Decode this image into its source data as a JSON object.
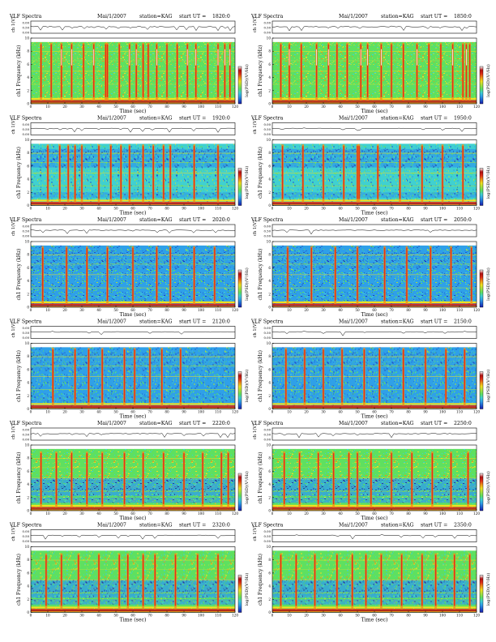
{
  "header_labels": {
    "title": "VLF Spectra",
    "date": "Mai/1/2007",
    "station": "station=KAG",
    "start_prefix": "start  UT  ="
  },
  "colors": {
    "background": "#ffffff",
    "axis": "#000000",
    "colormap": [
      "#1a1aa8",
      "#1f5fd0",
      "#2fa0e8",
      "#40d0d0",
      "#5ee060",
      "#a8e040",
      "#f0e020",
      "#f09018",
      "#e03018",
      "#b01010",
      "#ffffff"
    ]
  },
  "chart_data": [
    {
      "type": "heatmap",
      "title": "VLF Spectra",
      "start_ut": "1820:0",
      "upper_ylabel": "ch 1(V)",
      "upper_yticks": [
        "0.00",
        "0.50",
        "0.00"
      ],
      "xlabel": "Time (sec)",
      "ylabel": "ch1 Frequency (kHz)",
      "colorbar_label": "log(PSD)(V²/Hz)",
      "x_ticks": [
        0,
        10,
        20,
        30,
        40,
        50,
        60,
        70,
        80,
        90,
        100,
        110,
        120
      ],
      "y_ticks": [
        0,
        2,
        4,
        6,
        8,
        10
      ],
      "xlim": [
        0,
        120
      ],
      "ylim": [
        0,
        10
      ],
      "activity": "high",
      "bursts": [
        6,
        12,
        18,
        24,
        31,
        37,
        44,
        45,
        52,
        58,
        62,
        66,
        69,
        74,
        80,
        86,
        92,
        97,
        104,
        110,
        114,
        117
      ]
    },
    {
      "type": "heatmap",
      "title": "VLF Spectra",
      "start_ut": "1850:0",
      "upper_ylabel": "ch 1(V)",
      "upper_yticks": [
        "0.00",
        "0.50",
        "0.00"
      ],
      "xlabel": "Time (sec)",
      "ylabel": "ch1 Frequency (kHz)",
      "colorbar_label": "log(PSD)(V²/Hz)",
      "x_ticks": [
        0,
        10,
        20,
        30,
        40,
        50,
        60,
        70,
        80,
        90,
        100,
        110,
        120
      ],
      "y_ticks": [
        0,
        2,
        4,
        6,
        8,
        10
      ],
      "xlim": [
        0,
        120
      ],
      "ylim": [
        0,
        10
      ],
      "activity": "high",
      "bursts": [
        5,
        10,
        17,
        26,
        33,
        38,
        44,
        52,
        56,
        64,
        70,
        77,
        85,
        92,
        99,
        106,
        112,
        114,
        116
      ]
    },
    {
      "type": "heatmap",
      "title": "VLF Spectra",
      "start_ut": "1920:0",
      "upper_ylabel": "ch 1(V)",
      "upper_yticks": [
        "0.00",
        "0.50",
        "0.00"
      ],
      "xlabel": "Time (sec)",
      "ylabel": "ch1 Frequency (kHz)",
      "colorbar_label": "log(PSD)(V²/Hz)",
      "x_ticks": [
        0,
        10,
        20,
        30,
        40,
        50,
        60,
        70,
        80,
        90,
        100,
        110,
        120
      ],
      "y_ticks": [
        0,
        2,
        4,
        6,
        8,
        10
      ],
      "xlim": [
        0,
        120
      ],
      "ylim": [
        0,
        10
      ],
      "activity": "mid",
      "bursts": [
        10,
        17,
        22,
        26,
        30,
        40,
        47,
        53,
        58,
        66,
        72,
        78,
        82,
        96,
        110
      ]
    },
    {
      "type": "heatmap",
      "title": "VLF Spectra",
      "start_ut": "1950:0",
      "upper_ylabel": "ch 1(V)",
      "upper_yticks": [
        "0.00",
        "0.50",
        "0.00"
      ],
      "xlabel": "Time (sec)",
      "ylabel": "ch1 Frequency (kHz)",
      "colorbar_label": "log(PSD)(V²/Hz)",
      "x_ticks": [
        0,
        10,
        20,
        30,
        40,
        50,
        60,
        70,
        80,
        90,
        100,
        110,
        120
      ],
      "y_ticks": [
        0,
        2,
        4,
        6,
        8,
        10
      ],
      "xlim": [
        0,
        120
      ],
      "ylim": [
        0,
        10
      ],
      "activity": "mid",
      "bursts": [
        6,
        18,
        30,
        42,
        50,
        51,
        62,
        75,
        88,
        100,
        112
      ]
    },
    {
      "type": "heatmap",
      "title": "VLF Spectra",
      "start_ut": "2020:0",
      "upper_ylabel": "ch 1(V)",
      "upper_yticks": [
        "0.00",
        "0.50",
        "0.00"
      ],
      "xlabel": "Time (sec)",
      "ylabel": "ch1 Frequency (kHz)",
      "colorbar_label": "log(PSD)(V²/Hz)",
      "x_ticks": [
        0,
        10,
        20,
        30,
        40,
        50,
        60,
        70,
        80,
        90,
        100,
        110,
        120
      ],
      "y_ticks": [
        0,
        2,
        4,
        6,
        8,
        10
      ],
      "xlim": [
        0,
        120
      ],
      "ylim": [
        0,
        10
      ],
      "activity": "low",
      "bursts": [
        7,
        21,
        33,
        45,
        60,
        74,
        82,
        96,
        108
      ]
    },
    {
      "type": "heatmap",
      "title": "VLF Spectra",
      "start_ut": "2050:0",
      "upper_ylabel": "ch 1(V)",
      "upper_yticks": [
        "0.00",
        "0.50",
        "0.00"
      ],
      "xlabel": "Time (sec)",
      "ylabel": "ch1 Frequency (kHz)",
      "colorbar_label": "log(PSD)(V²/Hz)",
      "x_ticks": [
        0,
        10,
        20,
        30,
        40,
        50,
        60,
        70,
        80,
        90,
        100,
        110,
        120
      ],
      "y_ticks": [
        0,
        2,
        4,
        6,
        8,
        10
      ],
      "xlim": [
        0,
        120
      ],
      "ylim": [
        0,
        10
      ],
      "activity": "low",
      "bursts": [
        9,
        23,
        37,
        50,
        66,
        79,
        93,
        105,
        117
      ]
    },
    {
      "type": "heatmap",
      "title": "VLF Spectra",
      "start_ut": "2120:0",
      "upper_ylabel": "ch 1(V)",
      "upper_yticks": [
        "0.00",
        "0.50",
        "0.00"
      ],
      "xlabel": "Time (sec)",
      "ylabel": "ch1 Frequency (kHz)",
      "colorbar_label": "log(PSD)(V²/Hz)",
      "x_ticks": [
        0,
        10,
        20,
        30,
        40,
        50,
        60,
        70,
        80,
        90,
        100,
        110,
        120
      ],
      "y_ticks": [
        0,
        2,
        4,
        6,
        8,
        10
      ],
      "xlim": [
        0,
        120
      ],
      "ylim": [
        0,
        10
      ],
      "activity": "low",
      "bursts": [
        13,
        26,
        34,
        42,
        55,
        61,
        70,
        77,
        88
      ]
    },
    {
      "type": "heatmap",
      "title": "VLF Spectra",
      "start_ut": "2150:0",
      "upper_ylabel": "ch 1(V)",
      "upper_yticks": [
        "0.00",
        "0.50",
        "0.00"
      ],
      "xlabel": "Time (sec)",
      "ylabel": "ch1 Frequency (kHz)",
      "colorbar_label": "log(PSD)(V²/Hz)",
      "x_ticks": [
        0,
        10,
        20,
        30,
        40,
        50,
        60,
        70,
        80,
        90,
        100,
        110,
        120
      ],
      "y_ticks": [
        0,
        2,
        4,
        6,
        8,
        10
      ],
      "xlim": [
        0,
        120
      ],
      "ylim": [
        0,
        10
      ],
      "activity": "low",
      "bursts": [
        8,
        19,
        30,
        41,
        54,
        63,
        77,
        90,
        102,
        113
      ]
    },
    {
      "type": "heatmap",
      "title": "VLF Spectra",
      "start_ut": "2220:0",
      "upper_ylabel": "ch 1(V)",
      "upper_yticks": [
        "0.00",
        "0.50",
        "0.00"
      ],
      "xlabel": "Time (sec)",
      "ylabel": "ch1 Frequency (kHz)",
      "colorbar_label": "log(PSD)(V²/Hz)",
      "x_ticks": [
        0,
        10,
        20,
        30,
        40,
        50,
        60,
        70,
        80,
        90,
        100,
        110,
        120
      ],
      "y_ticks": [
        0,
        2,
        4,
        6,
        8,
        10
      ],
      "xlim": [
        0,
        120
      ],
      "ylim": [
        0,
        10
      ],
      "activity": "upper",
      "bursts": [
        6,
        15,
        24,
        33,
        42,
        55,
        66,
        78,
        90,
        101,
        112,
        116
      ]
    },
    {
      "type": "heatmap",
      "title": "VLF Spectra",
      "start_ut": "2250:0",
      "upper_ylabel": "ch 1(V)",
      "upper_yticks": [
        "0.00",
        "0.50",
        "0.00"
      ],
      "xlabel": "Time (sec)",
      "ylabel": "ch1 Frequency (kHz)",
      "colorbar_label": "log(PSD)(V²/Hz)",
      "x_ticks": [
        0,
        10,
        20,
        30,
        40,
        50,
        60,
        70,
        80,
        90,
        100,
        110,
        120
      ],
      "y_ticks": [
        0,
        2,
        4,
        6,
        8,
        10
      ],
      "xlim": [
        0,
        120
      ],
      "ylim": [
        0,
        10
      ],
      "activity": "upper",
      "bursts": [
        7,
        16,
        27,
        36,
        45,
        50,
        58,
        70,
        82,
        94,
        105,
        115
      ]
    },
    {
      "type": "heatmap",
      "title": "VLF Spectra",
      "start_ut": "2320:0",
      "upper_ylabel": "ch 1(V)",
      "upper_yticks": [
        "0.00",
        "0.50",
        "0.00"
      ],
      "xlabel": "Time (sec)",
      "ylabel": "ch1 Frequency (kHz)",
      "colorbar_label": "log(PSD)(V²/Hz)",
      "x_ticks": [
        0,
        10,
        20,
        30,
        40,
        50,
        60,
        70,
        80,
        90,
        100,
        110,
        120
      ],
      "y_ticks": [
        0,
        2,
        4,
        6,
        8,
        10
      ],
      "xlim": [
        0,
        120
      ],
      "ylim": [
        0,
        10
      ],
      "activity": "upper",
      "bursts": [
        9,
        18,
        28,
        40,
        52,
        57,
        66,
        73,
        85,
        98,
        110
      ]
    },
    {
      "type": "heatmap",
      "title": "VLF Spectra",
      "start_ut": "2350:0",
      "upper_ylabel": "ch 1(V)",
      "upper_yticks": [
        "0.00",
        "0.50",
        "0.00"
      ],
      "xlabel": "Time (sec)",
      "ylabel": "ch1 Frequency (kHz)",
      "colorbar_label": "log(PSD)(V²/Hz)",
      "x_ticks": [
        0,
        10,
        20,
        30,
        40,
        50,
        60,
        70,
        80,
        90,
        100,
        110,
        120
      ],
      "y_ticks": [
        0,
        2,
        4,
        6,
        8,
        10
      ],
      "xlim": [
        0,
        120
      ],
      "ylim": [
        0,
        10
      ],
      "activity": "upper",
      "bursts": [
        5,
        14,
        25,
        38,
        47,
        55,
        64,
        76,
        88,
        96,
        107,
        116
      ]
    }
  ]
}
